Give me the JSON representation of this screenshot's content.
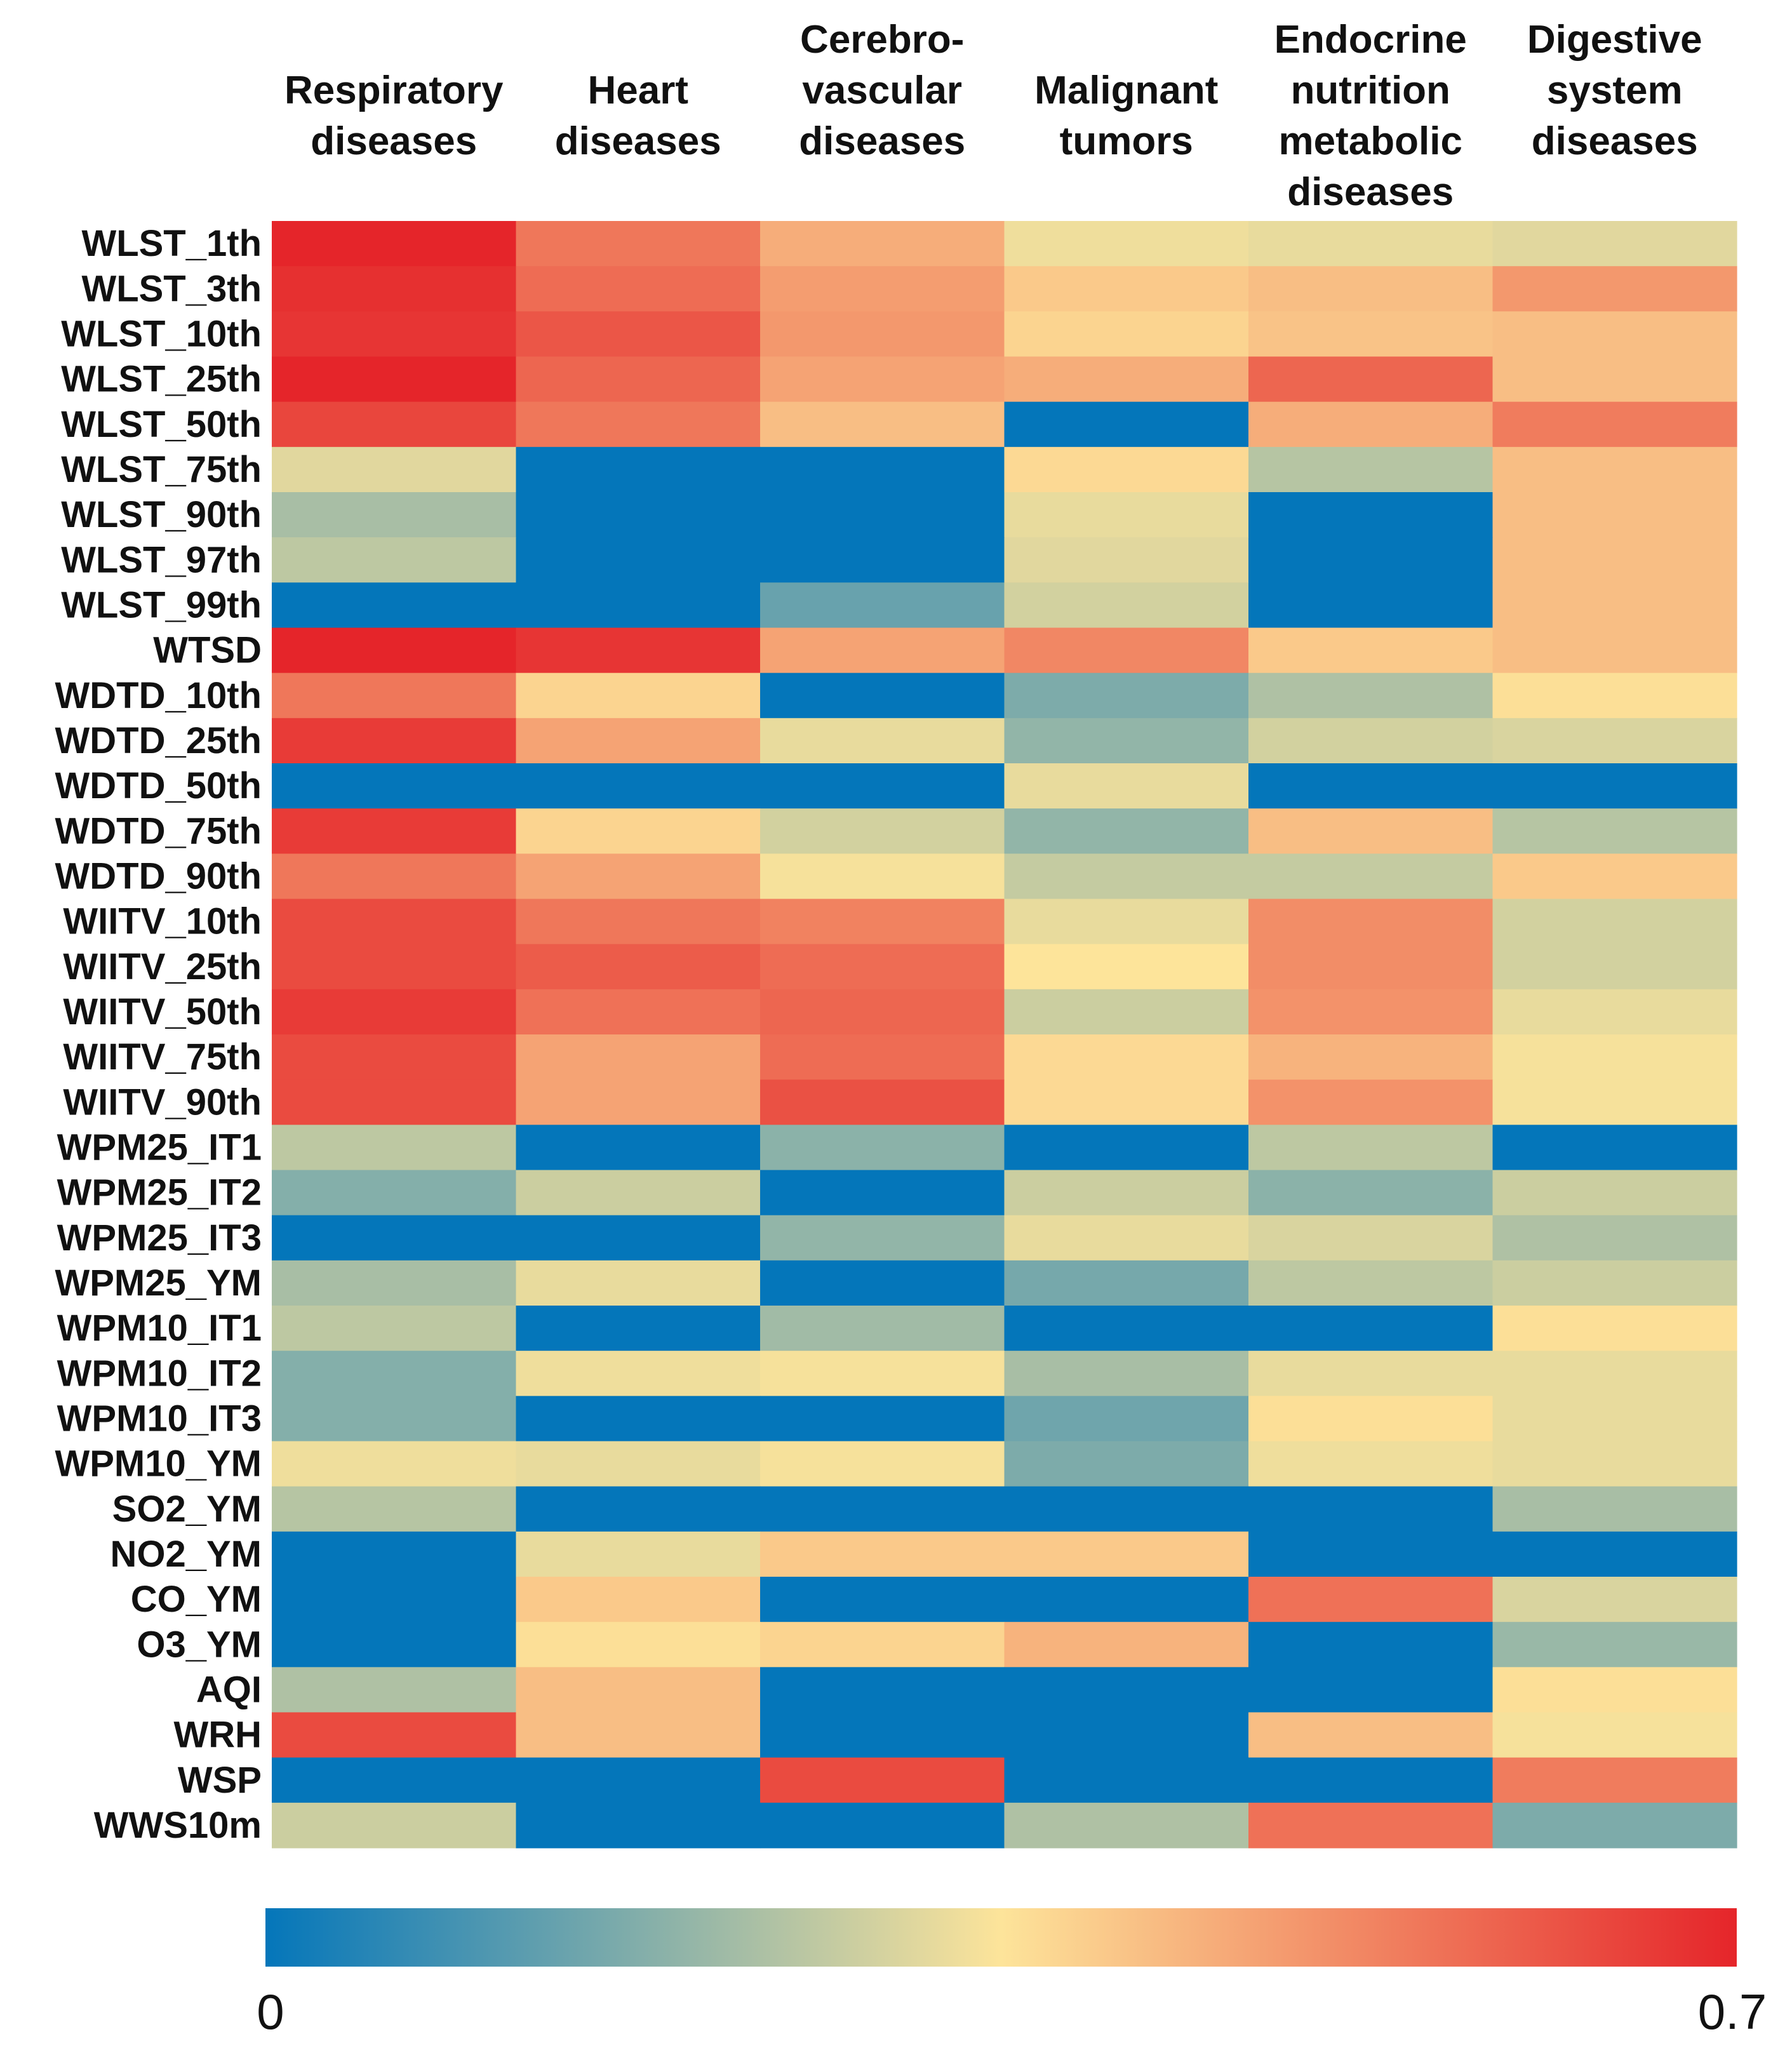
{
  "chart_data": {
    "type": "heatmap",
    "title": "",
    "columns": [
      {
        "lines": [
          "Respiratory",
          "diseases"
        ]
      },
      {
        "lines": [
          "Heart",
          "diseases"
        ]
      },
      {
        "lines": [
          "Cerebro-",
          "vascular",
          "diseases"
        ]
      },
      {
        "lines": [
          "Malignant",
          "tumors"
        ]
      },
      {
        "lines": [
          "Endocrine",
          "nutrition",
          "metabolic",
          "diseases"
        ]
      },
      {
        "lines": [
          "Digestive",
          "system",
          "diseases"
        ]
      }
    ],
    "rows": [
      "WLST_1th",
      "WLST_3th",
      "WLST_10th",
      "WLST_25th",
      "WLST_50th",
      "WLST_75th",
      "WLST_90th",
      "WLST_97th",
      "WLST_99th",
      "WTSD",
      "WDTD_10th",
      "WDTD_25th",
      "WDTD_50th",
      "WDTD_75th",
      "WDTD_90th",
      "WIITV_10th",
      "WIITV_25th",
      "WIITV_50th",
      "WIITV_75th",
      "WIITV_90th",
      "WPM25_IT1",
      "WPM25_IT2",
      "WPM25_IT3",
      "WPM25_YM",
      "WPM10_IT1",
      "WPM10_IT2",
      "WPM10_IT3",
      "WPM10_YM",
      "SO2_YM",
      "NO2_YM",
      "CO_YM",
      "O3_YM",
      "AQI",
      "WRH",
      "WSP",
      "WWS10m"
    ],
    "values": [
      [
        0.7,
        0.55,
        0.45,
        0.33,
        0.32,
        0.31
      ],
      [
        0.68,
        0.57,
        0.48,
        0.4,
        0.42,
        0.49
      ],
      [
        0.67,
        0.61,
        0.49,
        0.38,
        0.41,
        0.42
      ],
      [
        0.7,
        0.58,
        0.47,
        0.45,
        0.58,
        0.42
      ],
      [
        0.64,
        0.55,
        0.42,
        0.0,
        0.45,
        0.54
      ],
      [
        0.31,
        0.0,
        0.0,
        0.37,
        0.25,
        0.42
      ],
      [
        0.23,
        0.0,
        0.0,
        0.32,
        0.0,
        0.42
      ],
      [
        0.26,
        0.0,
        0.0,
        0.31,
        0.0,
        0.42
      ],
      [
        0.0,
        0.0,
        0.14,
        0.29,
        0.0,
        0.42
      ],
      [
        0.7,
        0.67,
        0.47,
        0.52,
        0.4,
        0.42
      ],
      [
        0.55,
        0.38,
        0.0,
        0.17,
        0.24,
        0.36
      ],
      [
        0.66,
        0.47,
        0.32,
        0.2,
        0.29,
        0.3
      ],
      [
        0.0,
        0.0,
        0.0,
        0.32,
        0.0,
        0.0
      ],
      [
        0.66,
        0.38,
        0.29,
        0.2,
        0.42,
        0.25
      ],
      [
        0.55,
        0.47,
        0.34,
        0.27,
        0.27,
        0.4
      ],
      [
        0.63,
        0.55,
        0.53,
        0.32,
        0.51,
        0.29
      ],
      [
        0.63,
        0.6,
        0.57,
        0.35,
        0.51,
        0.29
      ],
      [
        0.66,
        0.56,
        0.58,
        0.28,
        0.5,
        0.32
      ],
      [
        0.63,
        0.47,
        0.57,
        0.37,
        0.44,
        0.34
      ],
      [
        0.63,
        0.47,
        0.62,
        0.37,
        0.5,
        0.34
      ],
      [
        0.26,
        0.0,
        0.19,
        0.0,
        0.26,
        0.0
      ],
      [
        0.18,
        0.28,
        0.0,
        0.28,
        0.19,
        0.28
      ],
      [
        0.0,
        0.0,
        0.2,
        0.32,
        0.3,
        0.24
      ],
      [
        0.23,
        0.32,
        0.0,
        0.16,
        0.26,
        0.28
      ],
      [
        0.26,
        0.0,
        0.22,
        0.0,
        0.0,
        0.36
      ],
      [
        0.18,
        0.33,
        0.34,
        0.23,
        0.32,
        0.32
      ],
      [
        0.18,
        0.0,
        0.0,
        0.15,
        0.36,
        0.32
      ],
      [
        0.33,
        0.32,
        0.34,
        0.17,
        0.33,
        0.32
      ],
      [
        0.25,
        0.0,
        0.0,
        0.0,
        0.0,
        0.23
      ],
      [
        0.0,
        0.32,
        0.4,
        0.4,
        0.0,
        0.0
      ],
      [
        0.0,
        0.4,
        0.0,
        0.0,
        0.56,
        0.3
      ],
      [
        0.0,
        0.36,
        0.38,
        0.44,
        0.0,
        0.21
      ],
      [
        0.24,
        0.42,
        0.0,
        0.0,
        0.0,
        0.36
      ],
      [
        0.63,
        0.42,
        0.0,
        0.0,
        0.42,
        0.34
      ],
      [
        0.0,
        0.0,
        0.63,
        0.0,
        0.0,
        0.54
      ],
      [
        0.28,
        0.0,
        0.0,
        0.24,
        0.56,
        0.17
      ]
    ],
    "colorbar": {
      "min": 0,
      "max": 0.7,
      "min_label": "0",
      "max_label": "0.7",
      "colors": [
        "#0476ba",
        "#fde49a",
        "#e5252a"
      ]
    },
    "xlabel": "",
    "ylabel": ""
  }
}
